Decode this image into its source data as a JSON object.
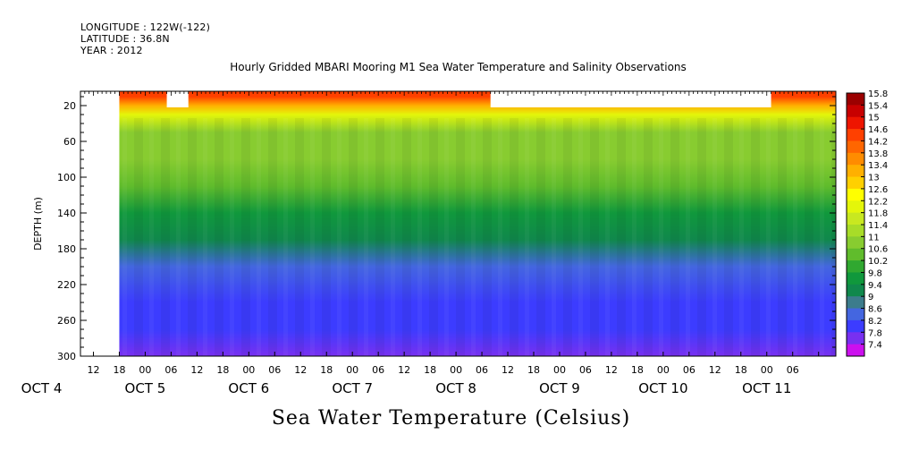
{
  "header": {
    "longitude": "LONGITUDE : 122W(-122)",
    "latitude": "LATITUDE : 36.8N",
    "year": "YEAR : 2012"
  },
  "chart_data": {
    "type": "heatmap",
    "title": "Hourly Gridded MBARI Mooring M1 Sea Water Temperature and Salinity Observations",
    "xlabel": "",
    "ylabel": "DEPTH (m)",
    "colorbar_label": "Sea Water Temperature (Celsius)",
    "y_ticks": [
      20,
      60,
      100,
      140,
      180,
      220,
      260,
      300
    ],
    "ylim": [
      300,
      4
    ],
    "x_hour_labels": [
      "12",
      "18",
      "00",
      "06",
      "12",
      "18",
      "00",
      "06",
      "12",
      "18",
      "00",
      "06",
      "12",
      "18",
      "00",
      "06",
      "12",
      "18",
      "00",
      "06",
      "12",
      "18",
      "00",
      "06",
      "12",
      "18",
      "00",
      "06"
    ],
    "x_day_labels": [
      "OCT  4",
      "OCT  5",
      "OCT  6",
      "OCT  7",
      "OCT  8",
      "OCT  9",
      "OCT 10",
      "OCT 11"
    ],
    "colorbar_levels": [
      "15.8",
      "15.4",
      "15",
      "14.6",
      "14.2",
      "13.8",
      "13.4",
      "13",
      "12.6",
      "12.2",
      "11.8",
      "11.4",
      "11",
      "10.6",
      "10.2",
      "9.8",
      "9.4",
      "9",
      "8.6",
      "8.2",
      "7.8",
      "7.4"
    ],
    "colorbar_colors": [
      "#9b0000",
      "#c80000",
      "#ee1500",
      "#ff4000",
      "#ff6600",
      "#ff8c00",
      "#ffb000",
      "#ffd000",
      "#ffff00",
      "#e4f60a",
      "#c8e820",
      "#a8dc28",
      "#88cc30",
      "#60bc2c",
      "#30a830",
      "#10983c",
      "#10884c",
      "#3c7c8c",
      "#4466e0",
      "#3c3cff",
      "#7830f0",
      "#cc10ee"
    ],
    "data_gaps": [
      {
        "x_range": [
          "OCT 4 09:00",
          "OCT 4 18:00"
        ],
        "depth_range": [
          4,
          300
        ]
      },
      {
        "x_range": [
          "OCT 5 05:00",
          "OCT 5 10:00"
        ],
        "depth_range": [
          4,
          20
        ]
      },
      {
        "x_range": [
          "OCT 8 08:00",
          "OCT 11 01:00"
        ],
        "depth_range": [
          4,
          20
        ]
      }
    ],
    "temperature_profile": [
      {
        "depth": 10,
        "value": 14.6
      },
      {
        "depth": 20,
        "value": 13.6
      },
      {
        "depth": 30,
        "value": 12.0
      },
      {
        "depth": 50,
        "value": 11.2
      },
      {
        "depth": 80,
        "value": 10.8
      },
      {
        "depth": 110,
        "value": 10.4
      },
      {
        "depth": 140,
        "value": 9.9
      },
      {
        "depth": 170,
        "value": 9.3
      },
      {
        "depth": 200,
        "value": 8.7
      },
      {
        "depth": 240,
        "value": 8.3
      },
      {
        "depth": 270,
        "value": 8.0
      },
      {
        "depth": 300,
        "value": 7.8
      }
    ]
  }
}
